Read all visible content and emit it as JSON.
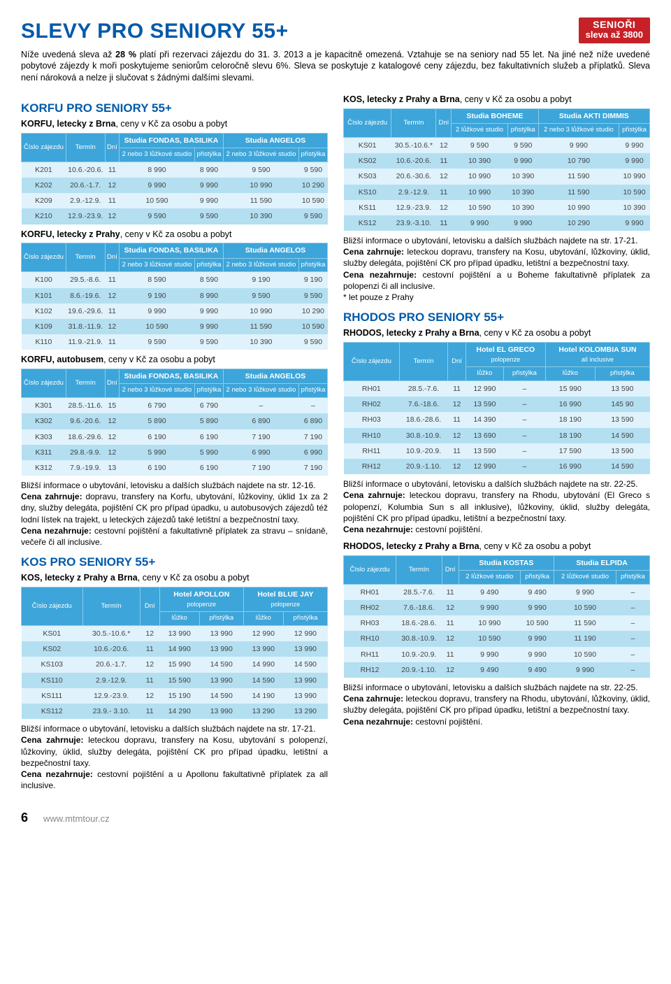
{
  "title": "SLEVY PRO SENIORY 55+",
  "badge": {
    "line1": "SENIOŘI",
    "line2": "sleva až 3800"
  },
  "intro_html": "Níže uvedená sleva až <b>28 %</b> platí při rezervaci zájezdu do 31. 3. 2013 a je kapacitně omezená. Vztahuje se na seniory nad 55 let. Na jiné než níže uvedené pobytové zájezdy k moři poskytujeme seniorům celoročně slevu 6%. Sleva se poskytuje z katalogové ceny zájezdu, bez fakultativních služeb a příplatků. Sleva není nároková a nelze ji slučovat s žádnými dalšími slevami.",
  "sections": {
    "korfu": {
      "heading": "KORFU PRO SENIORY 55+",
      "tables": [
        {
          "subhead_html": "<b>KORFU, letecky z Brna</b>, ceny v Kč za osobu a pobyt",
          "group_headers": [
            "Studia FONDAS, BASILIKA",
            "Studia ANGELOS"
          ],
          "sub_headers": [
            "2 nebo 3 lůžkové studio",
            "přistýlka",
            "2 nebo 3 lůžkové studio",
            "přistýlka"
          ],
          "rows": [
            [
              "K201",
              "10.6.-20.6.",
              "11",
              "8 990",
              "8 990",
              "9 590",
              "9 590"
            ],
            [
              "K202",
              "20.6.-1.7.",
              "12",
              "9 990",
              "9 990",
              "10 990",
              "10 290"
            ],
            [
              "K209",
              "2.9.-12.9.",
              "11",
              "10 590",
              "9 990",
              "11 590",
              "10 590"
            ],
            [
              "K210",
              "12.9.-23.9.",
              "12",
              "9 590",
              "9 590",
              "10 390",
              "9 590"
            ]
          ]
        },
        {
          "subhead_html": "<b>KORFU, letecky z Prahy</b>, ceny v Kč za osobu a pobyt",
          "group_headers": [
            "Studia FONDAS, BASILIKA",
            "Studia ANGELOS"
          ],
          "sub_headers": [
            "2 nebo 3 lůžkové studio",
            "přistýlka",
            "2 nebo 3 lůžkové studio",
            "přistýlka"
          ],
          "rows": [
            [
              "K100",
              "29.5.-8.6.",
              "11",
              "8 590",
              "8 590",
              "9 190",
              "9 190"
            ],
            [
              "K101",
              "8.6.-19.6.",
              "12",
              "9 190",
              "8 990",
              "9 590",
              "9 590"
            ],
            [
              "K102",
              "19.6.-29.6.",
              "11",
              "9 990",
              "9 990",
              "10 990",
              "10 290"
            ],
            [
              "K109",
              "31.8.-11.9.",
              "12",
              "10 590",
              "9 990",
              "11 590",
              "10 590"
            ],
            [
              "K110",
              "11.9.-21.9.",
              "11",
              "9 590",
              "9 590",
              "10 390",
              "9 590"
            ]
          ]
        },
        {
          "subhead_html": "<b>KORFU, autobusem</b>, ceny v Kč za osobu a pobyt",
          "group_headers": [
            "Studia FONDAS, BASILIKA",
            "Studia ANGELOS"
          ],
          "sub_headers": [
            "2 nebo 3 lůžkové studio",
            "přistýlka",
            "2 nebo 3 lůžkové studio",
            "přistýlka"
          ],
          "rows": [
            [
              "K301",
              "28.5.-11.6.",
              "15",
              "6 790",
              "6 790",
              "–",
              "–"
            ],
            [
              "K302",
              "9.6.-20.6.",
              "12",
              "5 890",
              "5 890",
              "6 890",
              "6 890"
            ],
            [
              "K303",
              "18.6.-29.6.",
              "12",
              "6 190",
              "6 190",
              "7 190",
              "7 190"
            ],
            [
              "K311",
              "29.8.-9.9.",
              "12",
              "5 990",
              "5 990",
              "6 990",
              "6 990"
            ],
            [
              "K312",
              "7.9.-19.9.",
              "13",
              "6 190",
              "6 190",
              "7 190",
              "7 190"
            ]
          ]
        }
      ],
      "info_html": "Bližší informace o ubytování, letovisku a dalších službách najdete na str. 12-16.<br><b>Cena zahrnuje:</b> dopravu, transfery na Korfu, ubytování, lůžkoviny, úklid 1x za 2 dny, služby delegáta, pojištění CK pro případ úpadku, u autobusových zájezdů též lodní lístek na trajekt, u leteckých zájezdů také letištní a bezpečnostní taxy.<br><b>Cena nezahrnuje:</b> cestovní pojištění a fakultativně příplatek za stravu – snídaně, večeře či all inclusive."
    },
    "kos_left": {
      "heading": "KOS PRO SENIORY 55+",
      "tables": [
        {
          "subhead_html": "<b>KOS, letecky z Prahy a Brna</b>, ceny v Kč za osobu a pobyt",
          "group_headers_html": [
            "Hotel APOLLON<br><span style='font-weight:normal;font-size:9px'>polopenze</span>",
            "Hotel BLUE JAY<br><span style='font-weight:normal;font-size:9px'>polopenze</span>"
          ],
          "sub_headers": [
            "lůžko",
            "přistýlka",
            "lůžko",
            "přistýlka"
          ],
          "rows": [
            [
              "KS01",
              "30.5.-10.6.*",
              "12",
              "13 990",
              "13 990",
              "12 990",
              "12 990"
            ],
            [
              "KS02",
              "10.6.-20.6.",
              "11",
              "14 990",
              "13 990",
              "13 990",
              "13 990"
            ],
            [
              "KS103",
              "20.6.-1.7.",
              "12",
              "15 990",
              "14 590",
              "14 990",
              "14 590"
            ],
            [
              "KS110",
              "2.9.-12.9.",
              "11",
              "15 590",
              "13 990",
              "14 590",
              "13 990"
            ],
            [
              "KS111",
              "12.9.-23.9.",
              "12",
              "15 190",
              "14 590",
              "14 190",
              "13 990"
            ],
            [
              "KS112",
              "23.9.- 3.10.",
              "11",
              "14 290",
              "13 990",
              "13 290",
              "13 290"
            ]
          ]
        }
      ],
      "info_html": "Bližší informace o ubytování, letovisku a dalších službách najdete na str. 17-21.<br><b>Cena zahrnuje:</b> leteckou dopravu, transfery na Kosu, ubytování s polopenzí, lůžkoviny, úklid, služby delegáta, pojištění CK pro případ úpadku, letištní a bezpečnostní taxy.<br><b>Cena nezahrnuje:</b> cestovní pojištění a u Apollonu fakultativně příplatek za all inclusive."
    },
    "kos_right": {
      "tables": [
        {
          "subhead_html": "<b>KOS, letecky z Prahy a Brna</b>, ceny v Kč za osobu a pobyt",
          "group_headers": [
            "Studia BOHEME",
            "Studia AKTI DIMMIS"
          ],
          "sub_headers": [
            "2 lůžkové studio",
            "přistýlka",
            "2 nebo 3 lůžkové studio",
            "přistýlka"
          ],
          "rows": [
            [
              "KS01",
              "30.5.-10.6.*",
              "12",
              "9 590",
              "9 590",
              "9 990",
              "9 990"
            ],
            [
              "KS02",
              "10.6.-20.6.",
              "11",
              "10 390",
              "9 990",
              "10 790",
              "9 990"
            ],
            [
              "KS03",
              "20.6.-30.6.",
              "12",
              "10 990",
              "10 390",
              "11 590",
              "10 990"
            ],
            [
              "KS10",
              "2.9.-12.9.",
              "11",
              "10 990",
              "10 390",
              "11 590",
              "10 590"
            ],
            [
              "KS11",
              "12.9.-23.9.",
              "12",
              "10 590",
              "10 390",
              "10 990",
              "10 390"
            ],
            [
              "KS12",
              "23.9.-3.10.",
              "11",
              "9 990",
              "9 990",
              "10 290",
              "9 990"
            ]
          ]
        }
      ],
      "info_html": "Bližší informace o ubytování, letovisku a dalších službách najdete na str. 17-21.<br><b>Cena zahrnuje:</b> leteckou dopravu, transfery na Kosu, ubytování, lůžkoviny, úklid, služby delegáta, pojištění CK pro případ úpadku, letištní a bezpečnostní taxy.<br><b>Cena nezahrnuje:</b> cestovní pojištění a u Boheme fakultativně příplatek za polopenzi či all inclusive.<br>* let pouze z Prahy"
    },
    "rhodos": {
      "heading": "RHODOS PRO SENIORY 55+",
      "tables": [
        {
          "subhead_html": "<b>RHODOS, letecky z Prahy a Brna</b>, ceny v Kč za osobu a pobyt",
          "group_headers_html": [
            "Hotel EL GRECO<br><span style='font-weight:normal;font-size:9px'>polopenze</span>",
            "Hotel KOLOMBIA SUN<br><span style='font-weight:normal;font-size:9px'>all inclusive</span>"
          ],
          "sub_headers": [
            "lůžko",
            "přistýlka",
            "lůžko",
            "přistýlka"
          ],
          "rows": [
            [
              "RH01",
              "28.5.-7.6.",
              "11",
              "12 990",
              "–",
              "15 990",
              "13 590"
            ],
            [
              "RH02",
              "7.6.-18.6.",
              "12",
              "13 590",
              "–",
              "16 990",
              "145 90"
            ],
            [
              "RH03",
              "18.6.-28.6.",
              "11",
              "14 390",
              "–",
              "18 190",
              "13 590"
            ],
            [
              "RH10",
              "30.8.-10.9.",
              "12",
              "13 690",
              "–",
              "18 190",
              "14 590"
            ],
            [
              "RH11",
              "10.9.-20.9.",
              "11",
              "13 590",
              "–",
              "17 590",
              "13 590"
            ],
            [
              "RH12",
              "20.9.-1.10.",
              "12",
              "12 990",
              "–",
              "16 990",
              "14 590"
            ]
          ]
        },
        {
          "subhead_html": "<b>RHODOS, letecky z Prahy a Brna</b>, ceny v Kč za osobu a pobyt",
          "group_headers": [
            "Studia KOSTAS",
            "Studia ELPIDA"
          ],
          "sub_headers": [
            "2 lůžkové studio",
            "přistýlka",
            "2 lůžkové studio",
            "přistýlka"
          ],
          "rows": [
            [
              "RH01",
              "28.5.-7.6.",
              "11",
              "9 490",
              "9 490",
              "9 990",
              "–"
            ],
            [
              "RH02",
              "7.6.-18.6.",
              "12",
              "9 990",
              "9 990",
              "10 590",
              "–"
            ],
            [
              "RH03",
              "18.6.-28.6.",
              "11",
              "10 990",
              "10 590",
              "11 590",
              "–"
            ],
            [
              "RH10",
              "30.8.-10.9.",
              "12",
              "10 590",
              "9 990",
              "11 190",
              "–"
            ],
            [
              "RH11",
              "10.9.-20.9.",
              "11",
              "9 990",
              "9 990",
              "10 590",
              "–"
            ],
            [
              "RH12",
              "20.9.-1.10.",
              "12",
              "9 490",
              "9 490",
              "9 990",
              "–"
            ]
          ]
        }
      ],
      "info1_html": "Bližší informace o ubytování, letovisku a dalších službách najdete na str. 22-25.<br><b>Cena zahrnuje:</b> leteckou dopravu, transfery na Rhodu, ubytování (El Greco s polopenzí, Kolumbia Sun s all inklusive), lůžkoviny, úklid, služby delegáta, pojištění CK pro případ úpadku, letištní a bezpečnostní taxy.<br><b>Cena nezahrnuje:</b> cestovní pojištění.",
      "info2_html": "Bližší informace o ubytování, letovisku a dalších službách najdete na str. 22-25.<br><b>Cena zahrnuje:</b> leteckou dopravu, transfery na Rhodu, ubytování, lůžkoviny, úklid, služby delegáta, pojištění CK pro případ úpadku, letištní a bezpečnostní taxy.<br><b>Cena nezahrnuje:</b> cestovní pojištění."
    }
  },
  "labels": {
    "cislo": "Číslo zájezdu",
    "termin": "Termín",
    "dni": "Dní"
  },
  "footer": {
    "page": "6",
    "url": "www.mtmtour.cz"
  }
}
